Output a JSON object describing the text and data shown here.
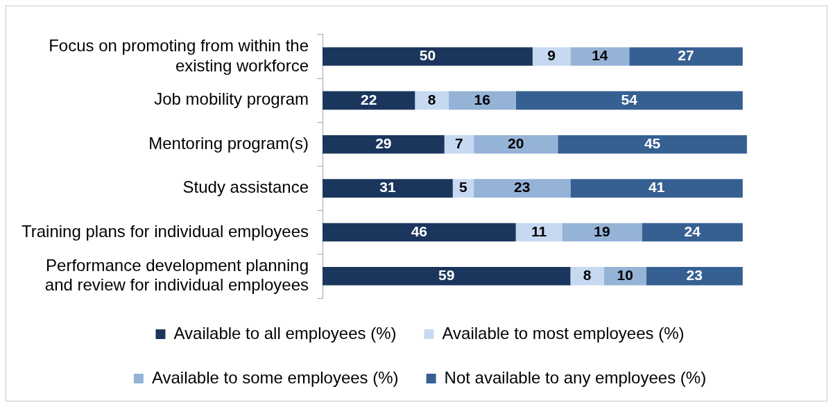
{
  "chart_data": {
    "type": "bar",
    "orientation": "horizontal",
    "stacked": true,
    "data_labels": true,
    "legend": "bottom",
    "categories": [
      "Focus on promoting from within the\nexisting workforce",
      "Job mobility program",
      "Mentoring program(s)",
      "Study assistance",
      "Training plans for individual employees",
      "Performance development planning\nand review for individual employees"
    ],
    "series": [
      {
        "name": "Available to all employees (%)",
        "color": "#1b365d",
        "values": [
          50,
          22,
          29,
          31,
          46,
          59
        ]
      },
      {
        "name": "Available to most employees (%)",
        "color": "#c6d9f1",
        "values": [
          9,
          8,
          7,
          5,
          11,
          8
        ]
      },
      {
        "name": "Available to some employees (%)",
        "color": "#95b3d7",
        "values": [
          14,
          16,
          20,
          23,
          19,
          10
        ]
      },
      {
        "name": "Not available to any employees (%)",
        "color": "#366092",
        "values": [
          27,
          54,
          45,
          41,
          24,
          23
        ]
      }
    ]
  }
}
